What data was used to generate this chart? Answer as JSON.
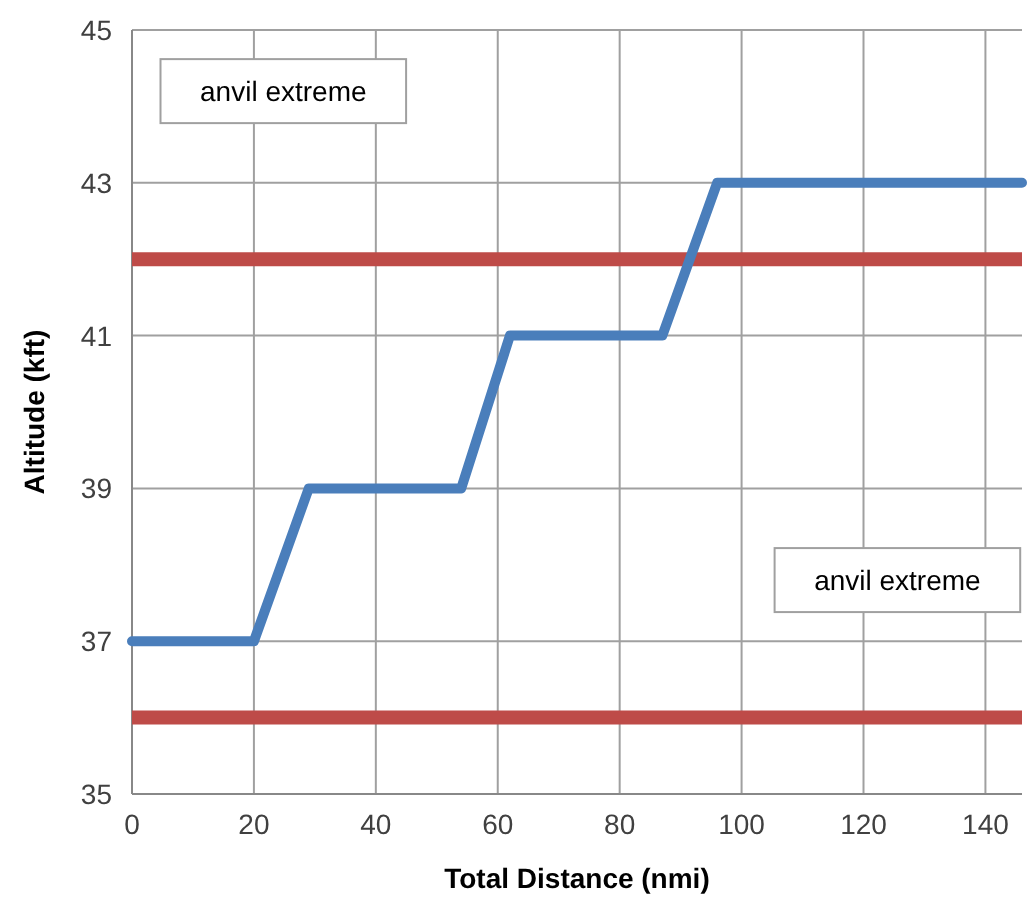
{
  "chart_data": {
    "type": "line",
    "xlabel": "Total Distance (nmi)",
    "ylabel": "Altitude (kft)",
    "x": [
      0,
      20,
      29,
      54,
      62,
      87,
      96,
      146
    ],
    "series": [
      {
        "color": "#4a7ebb",
        "values": [
          37,
          37,
          39,
          39,
          41,
          41,
          43,
          43
        ]
      }
    ],
    "xlim": [
      0,
      146
    ],
    "xticks": [
      0,
      20,
      40,
      60,
      80,
      100,
      120,
      140
    ],
    "ylim": [
      35,
      45
    ],
    "yticks": [
      35,
      37,
      39,
      41,
      43,
      45
    ],
    "grid": true,
    "marker": "none",
    "line_style": "solid",
    "ref_lines": [
      {
        "axis": "y",
        "value": 42,
        "color": "#be4b48"
      },
      {
        "axis": "y",
        "value": 36,
        "color": "#be4b48"
      }
    ],
    "annotations": [
      "anvil extreme",
      "anvil extreme"
    ]
  }
}
